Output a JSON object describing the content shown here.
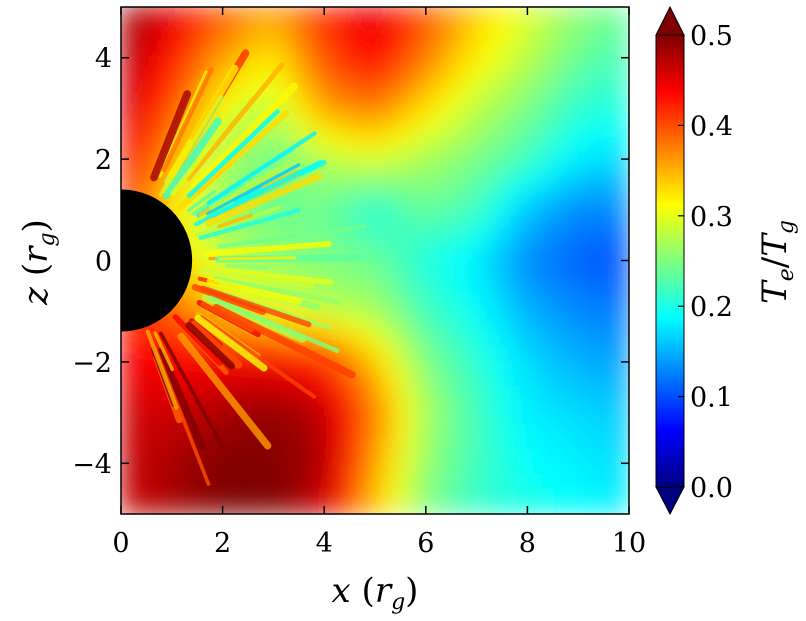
{
  "chart_data": {
    "type": "heatmap",
    "title": "",
    "xlabel": "x (r_g)",
    "ylabel": "z (r_g)",
    "colorbar_label": "T_e/T_g",
    "xlim": [
      0,
      10
    ],
    "ylim": [
      -5,
      5
    ],
    "x_ticks": [
      0,
      2,
      4,
      6,
      8,
      10
    ],
    "y_ticks": [
      -4,
      -2,
      0,
      2,
      4
    ],
    "x_tick_labels": [
      "0",
      "2",
      "4",
      "6",
      "8",
      "10"
    ],
    "y_tick_labels": [
      "−4",
      "−2",
      "0",
      "2",
      "4"
    ],
    "colorbar": {
      "colormap": "jet",
      "range": [
        0.0,
        0.5
      ],
      "ticks": [
        0.0,
        0.1,
        0.2,
        0.3,
        0.4,
        0.5
      ],
      "tick_labels": [
        "0.0",
        "0.1",
        "0.2",
        "0.3",
        "0.4",
        "0.5"
      ],
      "extend": "both"
    },
    "colormap_stops": [
      "#00007f",
      "#0000ff",
      "#007fff",
      "#00ffff",
      "#7fff7f",
      "#ffff00",
      "#ff7f00",
      "#ff0000",
      "#7f0000"
    ],
    "black_hole": {
      "center_x": 0,
      "center_z": 0,
      "radius": 1.4,
      "color": "#000000"
    },
    "grid_x": [
      0,
      1,
      2,
      3,
      4,
      5,
      6,
      7,
      8,
      9,
      10
    ],
    "grid_z": [
      5,
      4,
      3,
      2,
      1,
      0,
      -1,
      -2,
      -3,
      -4,
      -5
    ],
    "field_values": [
      [
        0.49,
        0.46,
        0.4,
        0.36,
        0.42,
        0.46,
        0.4,
        0.34,
        0.3,
        0.26,
        0.24
      ],
      [
        0.48,
        0.43,
        0.36,
        0.32,
        0.4,
        0.44,
        0.38,
        0.32,
        0.28,
        0.24,
        0.22
      ],
      [
        0.47,
        0.4,
        0.31,
        0.28,
        0.36,
        0.38,
        0.33,
        0.28,
        0.25,
        0.21,
        0.2
      ],
      [
        0.45,
        0.36,
        0.27,
        0.24,
        0.28,
        0.3,
        0.27,
        0.25,
        0.22,
        0.18,
        0.17
      ],
      [
        0.42,
        0.32,
        0.26,
        0.24,
        0.24,
        0.2,
        0.24,
        0.22,
        0.16,
        0.13,
        0.13
      ],
      [
        0.4,
        0.34,
        0.28,
        0.26,
        0.25,
        0.24,
        0.2,
        0.18,
        0.13,
        0.11,
        0.1
      ],
      [
        0.42,
        0.39,
        0.34,
        0.3,
        0.28,
        0.27,
        0.22,
        0.19,
        0.15,
        0.13,
        0.12
      ],
      [
        0.44,
        0.44,
        0.44,
        0.44,
        0.42,
        0.34,
        0.25,
        0.21,
        0.17,
        0.15,
        0.14
      ],
      [
        0.46,
        0.46,
        0.48,
        0.49,
        0.47,
        0.38,
        0.27,
        0.22,
        0.18,
        0.17,
        0.16
      ],
      [
        0.46,
        0.48,
        0.5,
        0.5,
        0.48,
        0.36,
        0.26,
        0.22,
        0.19,
        0.18,
        0.17
      ],
      [
        0.46,
        0.48,
        0.5,
        0.5,
        0.46,
        0.34,
        0.25,
        0.21,
        0.2,
        0.19,
        0.18
      ]
    ]
  }
}
